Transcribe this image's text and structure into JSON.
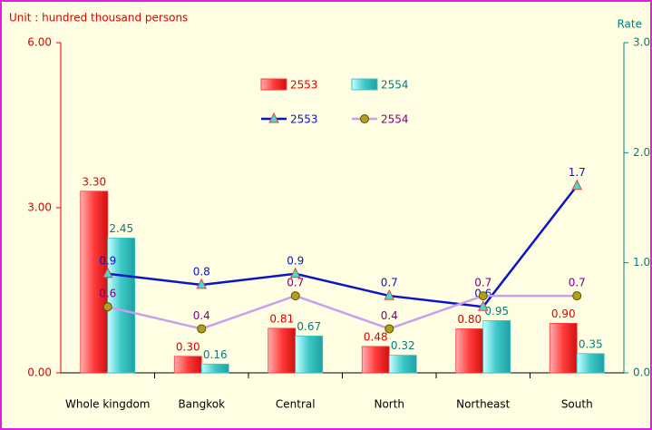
{
  "chart_data": {
    "type": "bar",
    "unit_label": "Unit : hundred thousand persons",
    "y2_label": "Rate",
    "categories": [
      "Whole kingdom",
      "Bangkok",
      "Central",
      "North",
      "Northeast",
      "South"
    ],
    "series": [
      {
        "name": "2553",
        "type": "bar",
        "color": "#ff3b3b",
        "values": [
          3.3,
          0.3,
          0.81,
          0.48,
          0.8,
          0.9
        ],
        "value_labels": [
          "3.30",
          "0.30",
          "0.81",
          "0.48",
          "0.80",
          "0.90"
        ]
      },
      {
        "name": "2554",
        "type": "bar",
        "color": "#3cc8c8",
        "values": [
          2.45,
          0.16,
          0.67,
          0.32,
          0.95,
          0.35
        ]
      },
      {
        "name": "2553",
        "type": "line",
        "axis": "y2",
        "color": "#0a14c8",
        "values": [
          0.9,
          0.8,
          0.9,
          0.7,
          0.6,
          1.7
        ]
      },
      {
        "name": "2554",
        "type": "line",
        "axis": "y2",
        "color": "#c8a0f0",
        "values": [
          0.6,
          0.4,
          0.7,
          0.4,
          0.7,
          0.7
        ]
      }
    ],
    "ylim": [
      0,
      6
    ],
    "yticks": [
      {
        "value": 0,
        "label": "0.00"
      },
      {
        "value": 3,
        "label": "3.00"
      },
      {
        "value": 6,
        "label": "6.00"
      }
    ],
    "y2lim": [
      0,
      3
    ],
    "y2ticks": [
      {
        "value": 0,
        "label": "0.0"
      },
      {
        "value": 1,
        "label": "1.0"
      },
      {
        "value": 2,
        "label": "2.0"
      },
      {
        "value": 3,
        "label": "3.0"
      }
    ]
  }
}
